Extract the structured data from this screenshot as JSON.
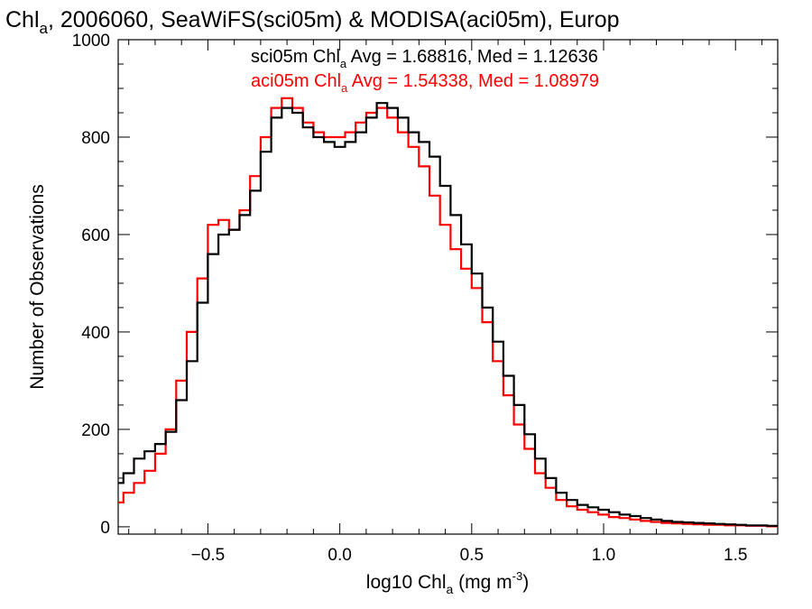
{
  "chart_data": {
    "type": "line",
    "title": {
      "prefix": "Chl",
      "sub": "a",
      "suffix": ", 2006060, SeaWiFS(sci05m) & MODISA(aci05m), Europ"
    },
    "xlabel": {
      "prefix": "log10 Chl",
      "sub": "a",
      "mid": " (mg m",
      "sup": "-3",
      "suffix": ")"
    },
    "ylabel": "Number of Observations",
    "xlim": [
      -0.84,
      1.66
    ],
    "ylim": [
      -15,
      1000
    ],
    "x_ticks": [
      -0.5,
      0.0,
      0.5,
      1.0,
      1.5
    ],
    "x_tick_labels": [
      "−0.5",
      "0.0",
      "0.5",
      "1.0",
      "1.5"
    ],
    "y_ticks": [
      0,
      200,
      400,
      600,
      800,
      1000
    ],
    "y_tick_labels": [
      "0",
      "200",
      "400",
      "600",
      "800",
      "1000"
    ],
    "grid": false,
    "legend_position": "top-center",
    "series": [
      {
        "name": "sci05m",
        "legend": {
          "prefix": "sci05m Chl",
          "sub": "a",
          "suffix": " Avg = 1.68816, Med = 1.12636"
        },
        "color": "#000000",
        "x": [
          -0.84,
          -0.8,
          -0.76,
          -0.72,
          -0.68,
          -0.64,
          -0.6,
          -0.56,
          -0.52,
          -0.48,
          -0.44,
          -0.4,
          -0.36,
          -0.32,
          -0.28,
          -0.24,
          -0.2,
          -0.16,
          -0.12,
          -0.08,
          -0.04,
          0.0,
          0.04,
          0.08,
          0.12,
          0.16,
          0.2,
          0.24,
          0.28,
          0.32,
          0.36,
          0.4,
          0.44,
          0.48,
          0.52,
          0.56,
          0.6,
          0.64,
          0.68,
          0.72,
          0.76,
          0.8,
          0.84,
          0.88,
          0.92,
          0.96,
          1.0,
          1.04,
          1.08,
          1.12,
          1.16,
          1.2,
          1.24,
          1.28,
          1.32,
          1.36,
          1.4,
          1.44,
          1.48,
          1.52,
          1.56,
          1.6,
          1.64
        ],
        "values": [
          90,
          110,
          140,
          155,
          170,
          195,
          260,
          340,
          460,
          560,
          600,
          610,
          640,
          690,
          770,
          840,
          860,
          850,
          820,
          800,
          790,
          780,
          790,
          810,
          840,
          870,
          860,
          840,
          810,
          790,
          760,
          700,
          640,
          580,
          520,
          450,
          380,
          310,
          250,
          190,
          140,
          100,
          70,
          55,
          45,
          40,
          35,
          30,
          25,
          22,
          18,
          15,
          12,
          10,
          9,
          8,
          7,
          6,
          5,
          4,
          3,
          3,
          2
        ]
      },
      {
        "name": "aci05m",
        "legend": {
          "prefix": "aci05m Chl",
          "sub": "a",
          "suffix": " Avg = 1.54338, Med = 1.08979"
        },
        "color": "#ff0000",
        "x": [
          -0.84,
          -0.8,
          -0.76,
          -0.72,
          -0.68,
          -0.64,
          -0.6,
          -0.56,
          -0.52,
          -0.48,
          -0.44,
          -0.4,
          -0.36,
          -0.32,
          -0.28,
          -0.24,
          -0.2,
          -0.16,
          -0.12,
          -0.08,
          -0.04,
          0.0,
          0.04,
          0.08,
          0.12,
          0.16,
          0.2,
          0.24,
          0.28,
          0.32,
          0.36,
          0.4,
          0.44,
          0.48,
          0.52,
          0.56,
          0.6,
          0.64,
          0.68,
          0.72,
          0.76,
          0.8,
          0.84,
          0.88,
          0.92,
          0.96,
          1.0,
          1.04,
          1.08,
          1.12,
          1.16,
          1.2,
          1.24,
          1.28,
          1.32,
          1.36,
          1.4,
          1.44,
          1.48,
          1.52,
          1.56,
          1.6,
          1.64
        ],
        "values": [
          50,
          70,
          90,
          115,
          150,
          200,
          300,
          400,
          510,
          620,
          630,
          610,
          650,
          720,
          800,
          860,
          880,
          860,
          830,
          810,
          800,
          800,
          810,
          830,
          850,
          860,
          840,
          810,
          780,
          740,
          680,
          620,
          570,
          530,
          490,
          420,
          340,
          270,
          210,
          160,
          110,
          80,
          55,
          42,
          35,
          30,
          25,
          20,
          18,
          15,
          12,
          10,
          8,
          7,
          6,
          5,
          4,
          4,
          3,
          3,
          2,
          2,
          1
        ]
      }
    ]
  }
}
